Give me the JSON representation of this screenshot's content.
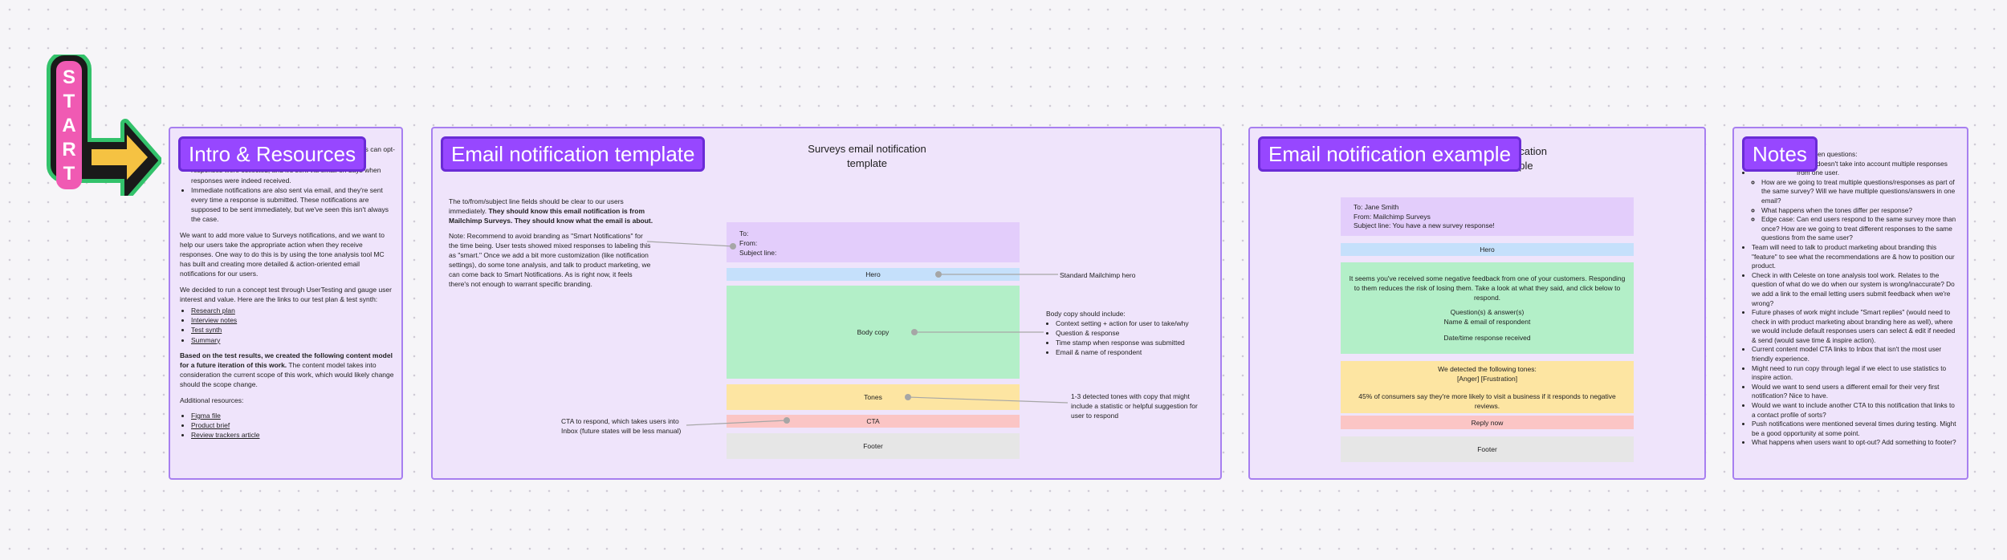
{
  "start_sticker": {
    "letters": [
      "S",
      "T",
      "A",
      "R",
      "T"
    ]
  },
  "intro": {
    "title": "Intro & Resources",
    "partial_top": "ns users can opt-",
    "bullets": [
      "The daily summary is a report showing how many survey responses were collected, and it's sent via email on days when responses were indeed received.",
      "Immediate notifications are also sent via email, and they're sent every time a response is submitted. These notifications are supposed to be sent immediately, but we've seen this isn't always the case."
    ],
    "p1": "We want to add more value to Surveys notifications, and we want to help our users take the appropriate action when they receive responses. One way to do this is by using the tone analysis tool MC has built and creating more detailed & action-oriented email notifications for our users.",
    "p2": "We decided to run a concept test through UserTesting and gauge user interest and value. Here are the links to our test plan & test synth:",
    "links1": [
      "Research plan",
      "Interview notes",
      "Test synth",
      "Summary"
    ],
    "p3_bold": "Based on the test results, we created the following content model for a future iteration of this work.",
    "p3_rest": " The content model takes into consideration the current scope of this work, which would likely change should the scope change.",
    "p4": "Additional resources:",
    "links2": [
      "Figma file",
      "Product brief",
      "Review trackers article"
    ]
  },
  "template": {
    "title": "Email notification template",
    "heading": "Surveys email notification template",
    "desc1_plain": "The to/from/subject line fields should be clear to our users immediately. ",
    "desc1_bold": "They should know this email notification is from Mailchimp Surveys. They should know what the email is about.",
    "desc2": "Note: Recommend to avoid branding as \"Smart Notifications\" for the time being. User tests showed mixed responses to labeling this as \"smart.\" Once we add a bit more customization (like notification settings), do some tone analysis, and talk to product marketing, we can come back to Smart Notifications. As is right now, it feels there's not enough to warrant specific branding.",
    "header_to": "To:",
    "header_from": "From:",
    "header_subject": "Subject line:",
    "hero": "Hero",
    "body": "Body copy",
    "tones": "Tones",
    "cta": "CTA",
    "footer": "Footer",
    "hero_note": "Standard Mailchimp hero",
    "body_note_title": "Body copy should include:",
    "body_note_items": [
      "Context setting + action for user to take/why",
      "Question & response",
      "Time stamp when response was submitted",
      "Email & name of respondent"
    ],
    "tones_note": "1-3 detected tones with copy that might include a statistic or helpful suggestion for user to respond",
    "cta_note": "CTA to respond, which takes users into Inbox (future states will be less manual)"
  },
  "example": {
    "title": "Email notification example",
    "heading_partial": "otification",
    "heading_partial2": "example",
    "to": "To: Jane Smith",
    "from": "From: Mailchimp Surveys",
    "subject": "Subject line: You have a new survey response!",
    "hero": "Hero",
    "body_text": "It seems you've received some negative feedback from one of your customers. Responding to them reduces the risk of losing them. Take a look at what they said, and click below to respond.",
    "body_lines": [
      "Question(s) & answer(s)",
      "Name & email of respondent",
      "",
      "Date/time response received"
    ],
    "tones_line1": "We detected the following tones:",
    "tones_line2": "[Anger] [Frustration]",
    "tones_line3": "45% of consumers say they're more likely to visit a business if it responds to negative reviews.",
    "cta": "Reply now",
    "footer": "Footer"
  },
  "notes": {
    "title": "Notes",
    "partial_top": "d open questions:",
    "items": [
      {
        "text": "model doesn't take into account multiple responses from one user.",
        "sub": [
          "How are we going to treat multiple questions/responses as part of the same survey? Will we have multiple questions/answers in one email?",
          "What happens when the tones differ per response?",
          "Edge case: Can end users respond to the same survey more than once? How are we going to treat different responses to the same questions from the same user?"
        ]
      },
      {
        "text": "Team will need to talk to product marketing about branding this \"feature\" to see what the recommendations are & how to position our product.",
        "sub": []
      },
      {
        "text": "Check in with Celeste on tone analysis tool work. Relates to the question of what do we do when our system is wrong/inaccurate? Do we add a link to the email letting users submit feedback when we're wrong?",
        "sub": []
      },
      {
        "text": "Future phases of work might include \"Smart replies\" (would need to check in with product marketing about branding here as well), where we would include default responses users can select & edit if needed & send (would save time & inspire action).",
        "sub": []
      },
      {
        "text": "Current content model CTA links to Inbox that isn't the most user friendly experience.",
        "sub": []
      },
      {
        "text": "Might need to run copy through legal if we elect to use statistics to inspire action.",
        "sub": []
      },
      {
        "text": "Would we want to send users a different email for their very first notification? Nice to have.",
        "sub": []
      },
      {
        "text": "Would we want to include another CTA to this notification that links to a contact profile of sorts?",
        "sub": []
      },
      {
        "text": "Push notifications were mentioned several times during testing. Might be a good opportunity at some point.",
        "sub": []
      },
      {
        "text": "What happens when users want to opt-out? Add something to footer?",
        "sub": []
      }
    ]
  },
  "colors": {
    "section_bg": "#efe4fb",
    "section_border": "#a77ff0",
    "tag": "#9747ff",
    "header_block": "#e3cdfb",
    "hero": "#c5e0fb",
    "body": "#b3efc8",
    "tones": "#fde5a2",
    "cta": "#fbc5c5",
    "footer": "#e6e6e6"
  }
}
